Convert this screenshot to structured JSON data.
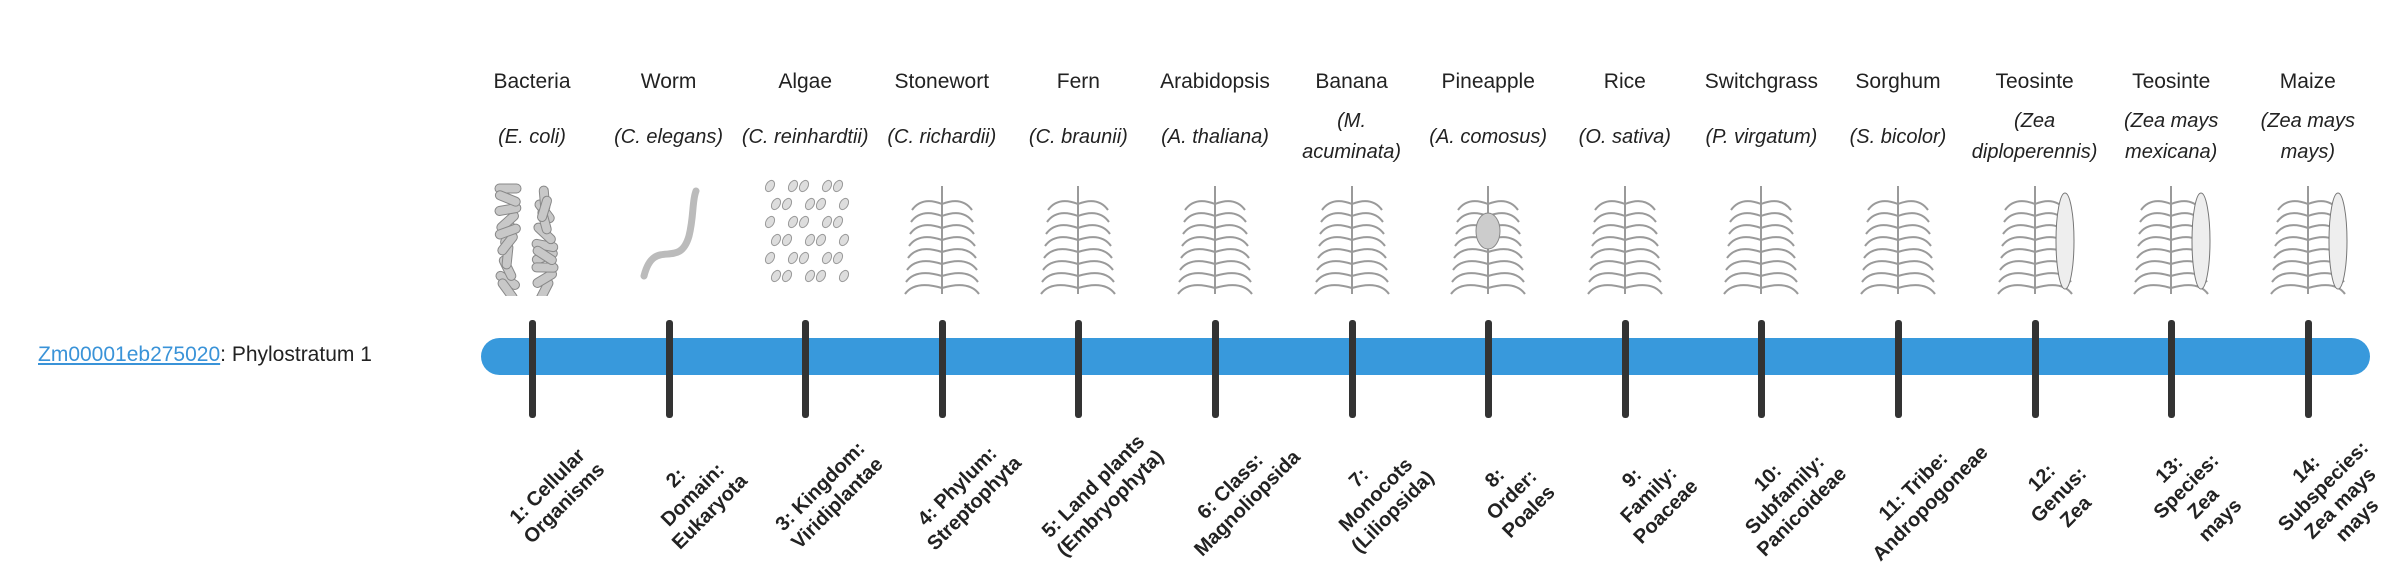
{
  "gene": {
    "id": "Zm00001eb275020",
    "suffix": ": Phylostratum 1"
  },
  "colors": {
    "bar": "#3899dc",
    "tick": "#333333",
    "link": "#3a93d8"
  },
  "strata": [
    {
      "common": "Bacteria",
      "scientific": "(E. coli)",
      "icon": "bacteria-icon",
      "rank": "1: Cellular Organisms"
    },
    {
      "common": "Worm",
      "scientific": "(C. elegans)",
      "icon": "worm-icon",
      "rank": "2: Domain: Eukaryota"
    },
    {
      "common": "Algae",
      "scientific": "(C. reinhardtii)",
      "icon": "algae-icon",
      "rank": "3: Kingdom: Viridiplantae"
    },
    {
      "common": "Stonewort",
      "scientific": "(C. richardii)",
      "icon": "stonewort-icon",
      "rank": "4: Phylum: Streptophyta"
    },
    {
      "common": "Fern",
      "scientific": "(C. braunii)",
      "icon": "fern-icon",
      "rank": "5: Land plants (Embryophyta)"
    },
    {
      "common": "Arabidopsis",
      "scientific": "(A. thaliana)",
      "icon": "arabidopsis-icon",
      "rank": "6: Class: Magnoliopsida"
    },
    {
      "common": "Banana",
      "scientific": "(M. acuminata)",
      "icon": "banana-icon",
      "rank": "7: Monocots (Liliopsida)"
    },
    {
      "common": "Pineapple",
      "scientific": "(A. comosus)",
      "icon": "pineapple-icon",
      "rank": "8: Order: Poales"
    },
    {
      "common": "Rice",
      "scientific": "(O. sativa)",
      "icon": "rice-icon",
      "rank": "9: Family: Poaceae"
    },
    {
      "common": "Switchgrass",
      "scientific": "(P. virgatum)",
      "icon": "switchgrass-icon",
      "rank": "10: Subfamily: Panicoideae"
    },
    {
      "common": "Sorghum",
      "scientific": "(S. bicolor)",
      "icon": "sorghum-icon",
      "rank": "11: Tribe: Andropogoneae"
    },
    {
      "common": "Teosinte",
      "scientific": "(Zea diploperennis)",
      "icon": "teosinte-icon",
      "rank": "12: Genus: Zea"
    },
    {
      "common": "Teosinte",
      "scientific": "(Zea mays mexicana)",
      "icon": "teosinte-icon",
      "rank": "13: Species: Zea mays"
    },
    {
      "common": "Maize",
      "scientific": "(Zea mays mays)",
      "icon": "maize-icon",
      "rank": "14: Subspecies: Zea mays mays"
    }
  ]
}
